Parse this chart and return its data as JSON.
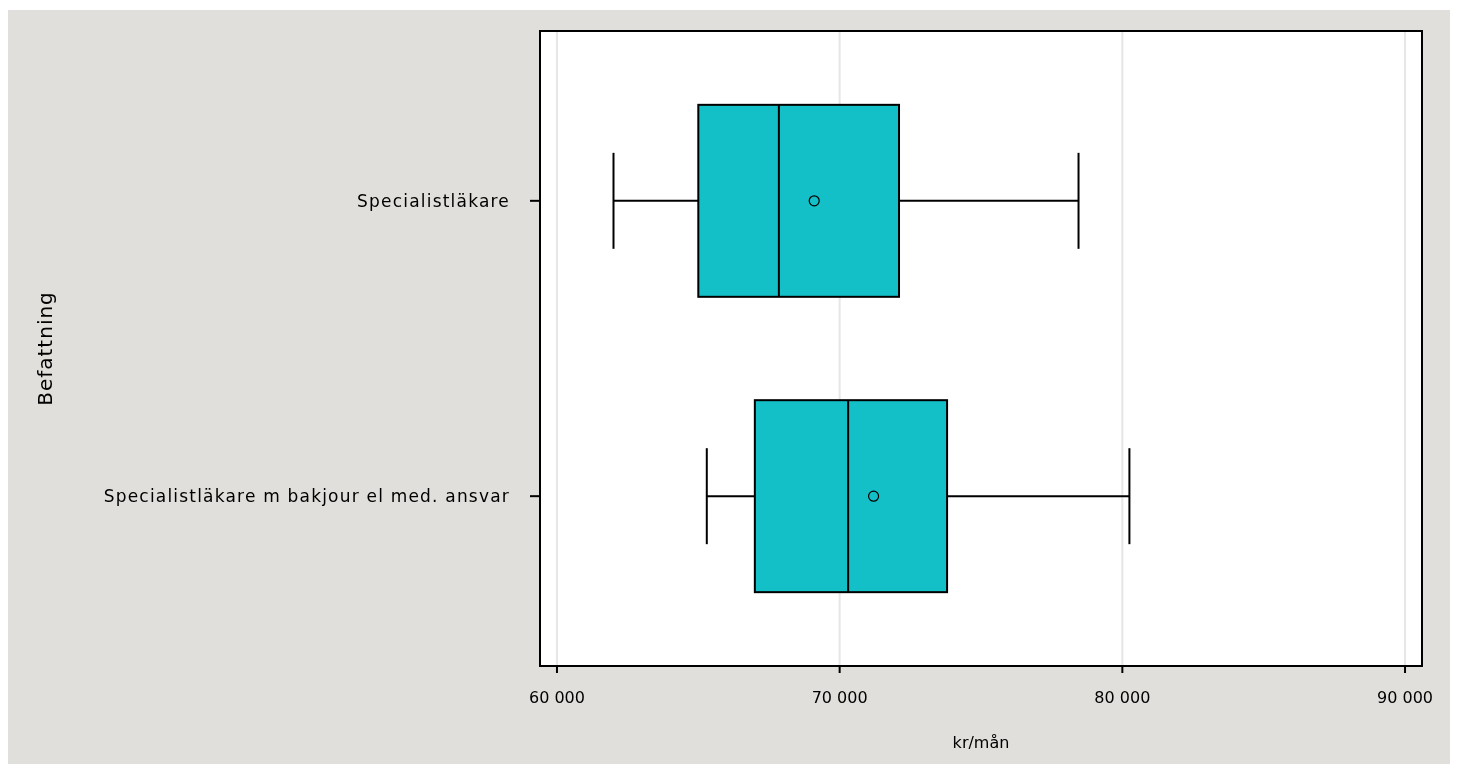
{
  "chart_data": {
    "type": "box",
    "orientation": "horizontal",
    "categories": [
      "Specialistläkare",
      "Specialistläkare m bakjour el med. ansvar"
    ],
    "boxes": [
      {
        "low": 62000,
        "q1": 65000,
        "median": 67850,
        "q3": 72100,
        "high": 78450,
        "mean": 69100
      },
      {
        "low": 65300,
        "q1": 67000,
        "median": 70300,
        "q3": 73800,
        "high": 80250,
        "mean": 71200
      }
    ],
    "color": "#14c0c8",
    "xlabel": "kr/mån",
    "ylabel": "Befattning",
    "xlim": [
      59400,
      90600
    ],
    "xticks": [
      {
        "value": 60000,
        "label": "60 000"
      },
      {
        "value": 70000,
        "label": "70 000"
      },
      {
        "value": 80000,
        "label": "80 000"
      },
      {
        "value": 90000,
        "label": "90 000"
      }
    ],
    "grid": "x"
  }
}
